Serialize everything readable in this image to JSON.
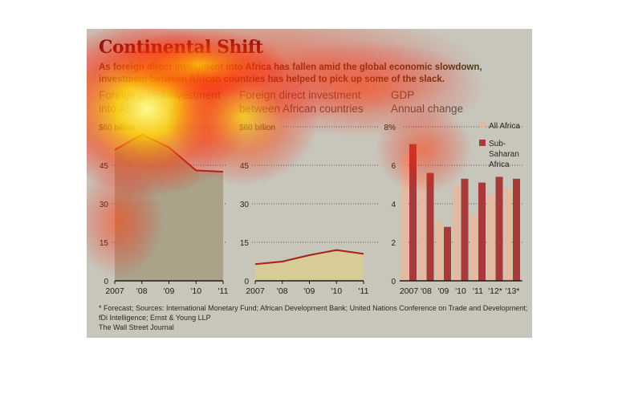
{
  "header": {
    "title": "Continental Shift",
    "subtitle": "As foreign direct investment into Africa has fallen amid the global economic slowdown, investment between African countries has helped to pick up some of the slack."
  },
  "colors": {
    "panel": "#c8c5ba",
    "area_left": "#a49c80",
    "area_mid": "#d9cc92",
    "line": "#a8201a",
    "bar_all_africa": "#e3b9a0",
    "bar_sub_saharan": "#a93a3a"
  },
  "chart_data": [
    {
      "type": "area",
      "title_lines": [
        "Foreign direct investment",
        "into Africa"
      ],
      "x": [
        "2007",
        "'08",
        "'09",
        "'10",
        "'11"
      ],
      "y": [
        51,
        57,
        52,
        43,
        42.5
      ],
      "yticks": [
        "0",
        "15",
        "30",
        "45",
        "$60 billion"
      ],
      "ylim": [
        0,
        60
      ],
      "grid": true
    },
    {
      "type": "area",
      "title_lines": [
        "Foreign direct investment",
        "between African countries"
      ],
      "x": [
        "2007",
        "'08",
        "'09",
        "'10",
        "'11"
      ],
      "y": [
        6.5,
        7.5,
        10,
        12,
        10.5
      ],
      "yticks": [
        "0",
        "15",
        "30",
        "45",
        "$60 billion"
      ],
      "ylim": [
        0,
        60
      ],
      "grid": true
    },
    {
      "type": "bar",
      "title_lines": [
        "GDP",
        "Annual change"
      ],
      "categories": [
        "2007",
        "'08",
        "'09",
        "'10",
        "'11",
        "'12*",
        "'13*"
      ],
      "series": [
        {
          "name": "All Africa",
          "values": [
            6.5,
            5.5,
            3.1,
            5.0,
            3.4,
            4.5,
            4.8
          ]
        },
        {
          "name": "Sub-Saharan Africa",
          "values": [
            7.1,
            5.6,
            2.8,
            5.3,
            5.1,
            5.4,
            5.3
          ]
        }
      ],
      "yticks": [
        "0",
        "2",
        "4",
        "6",
        "8%"
      ],
      "ylim": [
        0,
        8
      ],
      "legend": "top-right",
      "legend_lines": [
        [
          "All Africa"
        ],
        [
          "Sub-",
          "Saharan",
          "Africa"
        ]
      ],
      "grid": true
    }
  ],
  "footnote": {
    "line1": "* Forecast; Sources: International Monetary Fund; African Development Bank; United Nations Conference on Trade and Development;",
    "line2": "fDi Intelligence; Ernst & Young LLP",
    "source": "The Wall Street Journal"
  }
}
